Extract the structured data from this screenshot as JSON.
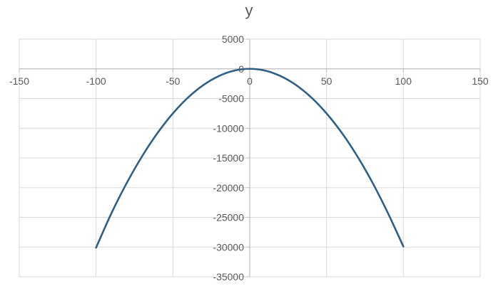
{
  "chart_data": {
    "type": "scatter",
    "title": "y",
    "xlabel": "",
    "ylabel": "",
    "xlim": [
      -150,
      150
    ],
    "ylim": [
      -35000,
      5000
    ],
    "x_ticks": [
      -150,
      -100,
      -50,
      0,
      50,
      100,
      150
    ],
    "y_ticks": [
      5000,
      0,
      -5000,
      -10000,
      -15000,
      -20000,
      -25000,
      -30000,
      -35000
    ],
    "x_tick_labels": [
      "-150",
      "-100",
      "-50",
      "0",
      "50",
      "100",
      "150"
    ],
    "y_tick_labels": [
      "5000",
      "0",
      "-5000",
      "-10000",
      "-15000",
      "-20000",
      "-25000",
      "-30000",
      "-35000"
    ],
    "grid": true,
    "line_color": "#2e5f86",
    "grid_color": "#d9d9d9",
    "axis_color": "#bfbfbf",
    "series": [
      {
        "x": [
          -100,
          -90,
          -80,
          -70,
          -60,
          -50,
          -40,
          -30,
          -20,
          -10,
          0,
          10,
          20,
          30,
          40,
          50,
          60,
          70,
          80,
          90,
          100
        ],
        "y": [
          -30100,
          -24300,
          -19200,
          -14700,
          -10800,
          -7500,
          -4800,
          -2700,
          -1200,
          -300,
          0,
          -300,
          -1200,
          -2700,
          -4800,
          -7500,
          -10800,
          -14700,
          -19200,
          -24300,
          -29900
        ]
      }
    ]
  }
}
